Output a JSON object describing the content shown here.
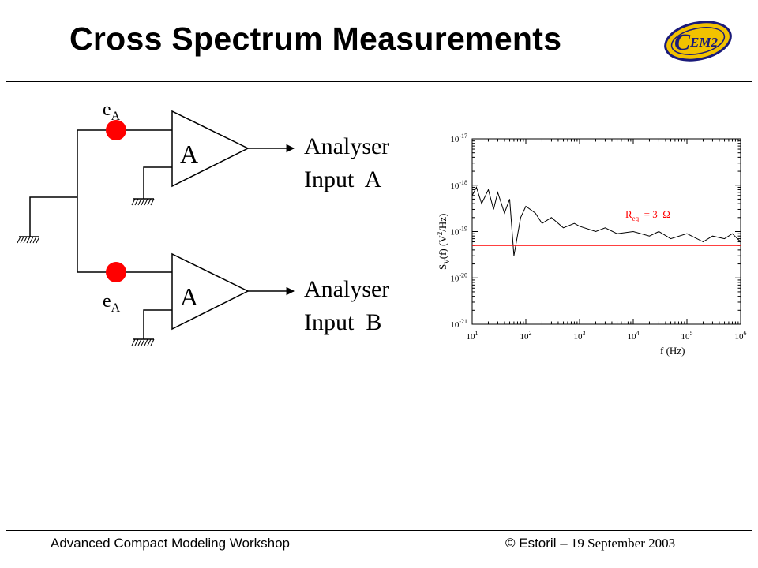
{
  "slide": {
    "title": "Cross Spectrum Measurements",
    "logo_text": "EM2",
    "logo_letter": "C"
  },
  "circuit": {
    "amp_top_label": "A",
    "amp_bottom_label": "A",
    "source_top": {
      "base": "e",
      "sub": "A"
    },
    "source_bottom": {
      "base": "e",
      "sub": "A"
    },
    "output_top": [
      "Analyser",
      "Input  A"
    ],
    "output_bottom": [
      "Analyser",
      "Input  B"
    ],
    "colors": {
      "source": "#ff0000",
      "wire": "#000000"
    }
  },
  "chart_data": {
    "type": "line",
    "x_scale": "log",
    "y_scale": "log",
    "xlim": [
      10,
      1000000
    ],
    "ylim": [
      1e-21,
      1e-17
    ],
    "x_ticks": [
      "10^1",
      "10^2",
      "10^3",
      "10^4",
      "10^5",
      "10^6"
    ],
    "y_ticks": [
      "10^-17",
      "10^-18",
      "10^-19",
      "10^-20",
      "10^-21"
    ],
    "xlabel": "f (Hz)",
    "ylabel": "S_V(f) (V^2/Hz)",
    "annotation": "R_eq = 3 Ω",
    "series": [
      {
        "role": "measured noise spectrum",
        "color": "#000000",
        "x": [
          10,
          12,
          15,
          20,
          25,
          30,
          40,
          50,
          60,
          80,
          100,
          150,
          200,
          300,
          500,
          800,
          1000,
          2000,
          3000,
          5000,
          10000,
          20000,
          30000,
          50000,
          100000,
          200000,
          300000,
          500000,
          700000,
          1000000
        ],
        "y": [
          6e-19,
          9e-19,
          4e-19,
          8e-19,
          3e-19,
          7e-19,
          2.5e-19,
          5e-19,
          3e-20,
          2e-19,
          3.5e-19,
          2.5e-19,
          1.5e-19,
          2e-19,
          1.2e-19,
          1.5e-19,
          1.3e-19,
          1e-19,
          1.2e-19,
          9e-20,
          1e-19,
          8e-20,
          1e-19,
          7e-20,
          9e-20,
          6e-20,
          8e-20,
          7e-20,
          9e-20,
          6e-20
        ]
      },
      {
        "role": "theoretical level",
        "color": "#ff0000",
        "x": [
          10,
          1000000
        ],
        "y": [
          5e-20,
          5e-20
        ]
      }
    ]
  },
  "footer": {
    "workshop": "Advanced Compact Modeling Workshop",
    "place": "© Estoril –",
    "date": "19 September 2003"
  }
}
